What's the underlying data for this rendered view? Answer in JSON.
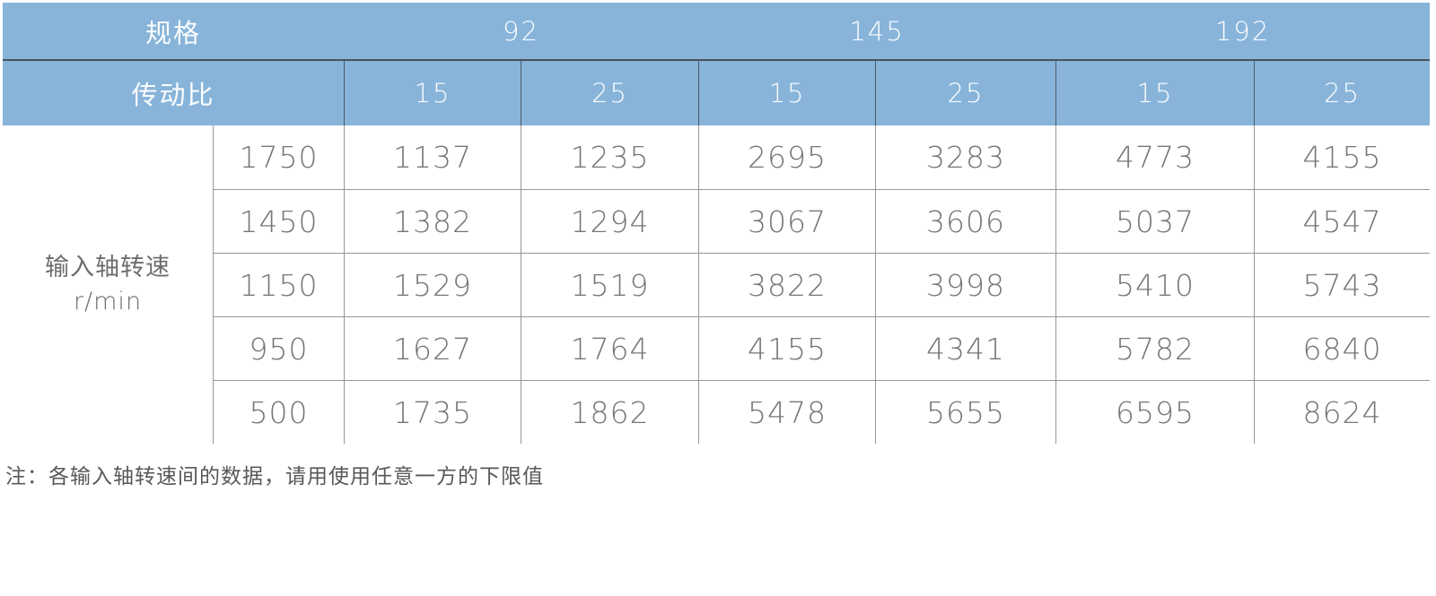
{
  "table": {
    "spec_label": "规格",
    "ratio_label": "传动比",
    "specs": [
      "92",
      "145",
      "192"
    ],
    "ratios": [
      "15",
      "25",
      "15",
      "25",
      "15",
      "25"
    ],
    "row_header_line1": "输入轴转速",
    "row_header_line2": "r/min",
    "speeds": [
      "1750",
      "1450",
      "1150",
      "950",
      "500"
    ],
    "values": [
      [
        "1137",
        "1235",
        "2695",
        "3283",
        "4773",
        "4155"
      ],
      [
        "1382",
        "1294",
        "3067",
        "3606",
        "5037",
        "4547"
      ],
      [
        "1529",
        "1519",
        "3822",
        "3998",
        "5410",
        "5743"
      ],
      [
        "1627",
        "1764",
        "4155",
        "4341",
        "5782",
        "6840"
      ],
      [
        "1735",
        "1862",
        "5478",
        "5655",
        "6595",
        "8624"
      ]
    ]
  },
  "note": "注：各输入轴转速间的数据，请用使用任意一方的下限值",
  "colors": {
    "header_blue": "#88b4da",
    "header_text": "#ffffff",
    "header_dark_line": "#47525c",
    "grid_line": "#979797",
    "data_text": "#767676",
    "note_text": "#585858"
  },
  "chart_data": {
    "type": "table",
    "title": "",
    "column_group_label": "规格",
    "column_groups": [
      {
        "spec": "92",
        "ratios": [
          15,
          25
        ]
      },
      {
        "spec": "145",
        "ratios": [
          15,
          25
        ]
      },
      {
        "spec": "192",
        "ratios": [
          15,
          25
        ]
      }
    ],
    "ratio_row_label": "传动比",
    "row_axis_label": "输入轴转速 r/min",
    "input_speeds": [
      1750,
      1450,
      1150,
      950,
      500
    ],
    "rows": [
      [
        1137,
        1235,
        2695,
        3283,
        4773,
        4155
      ],
      [
        1382,
        1294,
        3067,
        3606,
        5037,
        4547
      ],
      [
        1529,
        1519,
        3822,
        3998,
        5410,
        5743
      ],
      [
        1627,
        1764,
        4155,
        4341,
        5782,
        6840
      ],
      [
        1735,
        1862,
        5478,
        5655,
        6595,
        8624
      ]
    ],
    "footnote": "注：各输入轴转速间的数据，请用使用任意一方的下限值"
  }
}
